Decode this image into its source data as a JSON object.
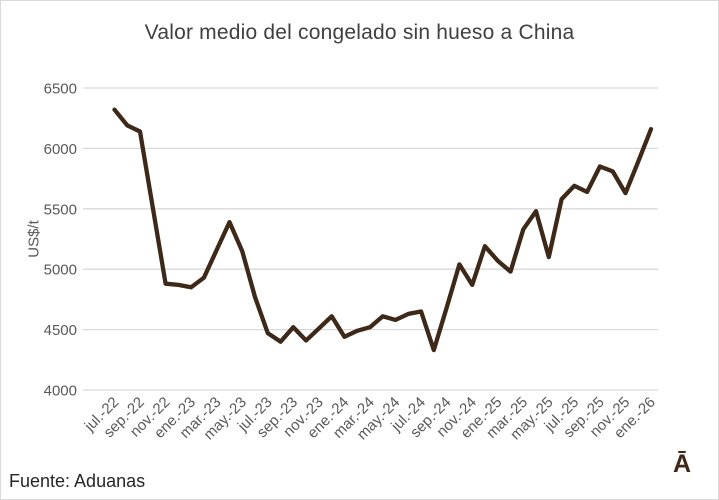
{
  "chart_data": {
    "type": "line",
    "title": "Valor medio del congelado sin hueso a China",
    "xlabel": "",
    "ylabel": "US$/t",
    "ylim": [
      4000,
      6500
    ],
    "yticks": [
      4000,
      4500,
      5000,
      5500,
      6000,
      6500
    ],
    "grid": true,
    "legend": "none",
    "xtick_every": 2,
    "categories": [
      "jul.-22",
      "ago.-22",
      "sep.-22",
      "oct.-22",
      "nov.-22",
      "dic.-22",
      "ene.-23",
      "feb.-23",
      "mar.-23",
      "abr.-23",
      "may.-23",
      "jun.-23",
      "jul.-23",
      "ago.-23",
      "sep.-23",
      "oct.-23",
      "nov.-23",
      "dic.-23",
      "ene.-24",
      "feb.-24",
      "mar.-24",
      "abr.-24",
      "may.-24",
      "jun.-24",
      "jul.-24",
      "ago.-24",
      "sep.-24",
      "oct.-24",
      "nov.-24",
      "dic.-24",
      "ene.-25",
      "feb.-25",
      "mar.-25",
      "abr.-25",
      "may.-25",
      "jun.-25",
      "jul.-25",
      "ago.-25",
      "sep.-25",
      "oct.-25",
      "nov.-25",
      "dic.-25",
      "ene.-26"
    ],
    "values": [
      6320,
      6190,
      6140,
      5510,
      4880,
      4870,
      4850,
      4930,
      5160,
      5390,
      5150,
      4770,
      4470,
      4400,
      4520,
      4410,
      4510,
      4610,
      4440,
      4490,
      4520,
      4610,
      4580,
      4630,
      4650,
      4330,
      4680,
      5040,
      4870,
      5190,
      5070,
      4980,
      5330,
      5480,
      5100,
      5580,
      5690,
      5640,
      5850,
      5810,
      5630,
      5890,
      6160
    ],
    "shown_xtick_labels": [
      "jul.-22",
      "sep.-22",
      "nov.-22",
      "ene.-23",
      "mar.-23",
      "may.-23",
      "jul.-23",
      "sep.-23",
      "nov.-23",
      "ene.-24",
      "mar.-24",
      "may.-24",
      "jul.-24",
      "sep.-24",
      "nov.-24",
      "ene.-25",
      "mar.-25",
      "may.-25",
      "jul.-25",
      "sep.-25",
      "nov.-25",
      "ene.-26"
    ]
  },
  "footer": {
    "source": "Fuente: Aduanas",
    "logo": "Ā"
  },
  "colors": {
    "line": "#3E2817",
    "grid": "#D9D9D9",
    "title_text": "#404040",
    "axis_text": "#595959",
    "source_text": "#262626",
    "logo": "#3E2817",
    "frame_border": "#D9D9D9",
    "background": "#FFFFFF"
  }
}
